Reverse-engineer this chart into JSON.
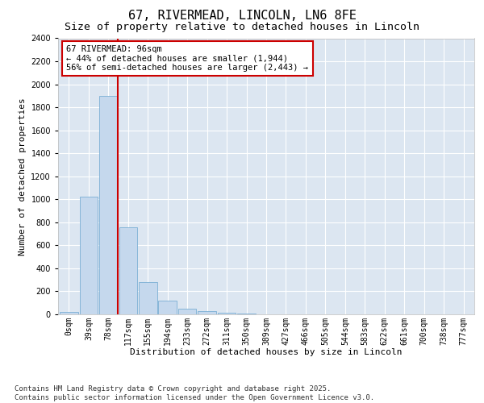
{
  "title_line1": "67, RIVERMEAD, LINCOLN, LN6 8FE",
  "title_line2": "Size of property relative to detached houses in Lincoln",
  "xlabel": "Distribution of detached houses by size in Lincoln",
  "ylabel": "Number of detached properties",
  "bar_color": "#c5d8ed",
  "bar_edge_color": "#7bafd4",
  "background_color": "#dce6f1",
  "grid_color": "#ffffff",
  "annotation_box_color": "#cc0000",
  "vline_color": "#cc0000",
  "vline_x": 2.47,
  "annotation_text": "67 RIVERMEAD: 96sqm\n← 44% of detached houses are smaller (1,944)\n56% of semi-detached houses are larger (2,443) →",
  "footnote": "Contains HM Land Registry data © Crown copyright and database right 2025.\nContains public sector information licensed under the Open Government Licence v3.0.",
  "categories": [
    "0sqm",
    "39sqm",
    "78sqm",
    "117sqm",
    "155sqm",
    "194sqm",
    "233sqm",
    "272sqm",
    "311sqm",
    "350sqm",
    "389sqm",
    "427sqm",
    "466sqm",
    "505sqm",
    "544sqm",
    "583sqm",
    "622sqm",
    "661sqm",
    "700sqm",
    "738sqm",
    "777sqm"
  ],
  "values": [
    20,
    1020,
    1900,
    760,
    280,
    120,
    50,
    30,
    15,
    5,
    0,
    0,
    0,
    0,
    0,
    0,
    0,
    0,
    0,
    0,
    0
  ],
  "ylim": [
    0,
    2400
  ],
  "yticks": [
    0,
    200,
    400,
    600,
    800,
    1000,
    1200,
    1400,
    1600,
    1800,
    2000,
    2200,
    2400
  ],
  "title_fontsize": 11,
  "subtitle_fontsize": 9.5,
  "label_fontsize": 8,
  "tick_fontsize": 7,
  "annot_fontsize": 7.5,
  "footnote_fontsize": 6.5
}
